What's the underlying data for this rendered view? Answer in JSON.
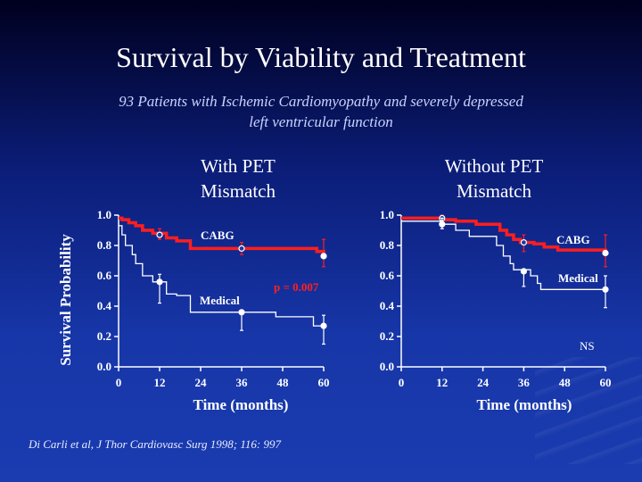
{
  "title": "Survival by Viability and Treatment",
  "subtitle_line1": "93 Patients with Ischemic Cardiomyopathy and severely depressed",
  "subtitle_line2": "left ventricular function",
  "ylabel": "Survival Probability",
  "citation": "Di Carli et al, J Thor Cardiovasc Surg 1998; 116: 997",
  "colors": {
    "cabg": "#ff1e1e",
    "medical": "#ffffff",
    "axis": "#ffffff"
  },
  "chart_data": [
    {
      "type": "line",
      "title_line1": "With PET",
      "title_line2": "Mismatch",
      "xlabel": "Time (months)",
      "ylabel": "Survival Probability",
      "xlim": [
        0,
        60
      ],
      "ylim": [
        0,
        1
      ],
      "x_ticks": [
        "0",
        "12",
        "24",
        "36",
        "48",
        "60"
      ],
      "y_ticks": [
        "0.0",
        "0.2",
        "0.4",
        "0.6",
        "0.8",
        "1.0"
      ],
      "annotation": "p = 0.007",
      "series": [
        {
          "name": "CABG",
          "color": "#ff1e1e",
          "step": [
            [
              0,
              0.98
            ],
            [
              1,
              0.97
            ],
            [
              3,
              0.95
            ],
            [
              5,
              0.93
            ],
            [
              7,
              0.9
            ],
            [
              10,
              0.88
            ],
            [
              14,
              0.85
            ],
            [
              17,
              0.83
            ],
            [
              21,
              0.78
            ],
            [
              58,
              0.76
            ],
            [
              60,
              0.73
            ]
          ],
          "markers": [
            [
              12,
              0.87
            ],
            [
              36,
              0.78
            ],
            [
              60,
              0.73
            ]
          ],
          "errors": [
            [
              12,
              0.84,
              0.91
            ],
            [
              36,
              0.74,
              0.82
            ],
            [
              60,
              0.66,
              0.84
            ]
          ]
        },
        {
          "name": "Medical",
          "color": "#ffffff",
          "step": [
            [
              0,
              0.93
            ],
            [
              1,
              0.87
            ],
            [
              2,
              0.8
            ],
            [
              4,
              0.74
            ],
            [
              5,
              0.68
            ],
            [
              7,
              0.6
            ],
            [
              10,
              0.56
            ],
            [
              14,
              0.48
            ],
            [
              17,
              0.47
            ],
            [
              21,
              0.36
            ],
            [
              46,
              0.33
            ],
            [
              57,
              0.27
            ]
          ],
          "markers": [
            [
              12,
              0.56
            ],
            [
              36,
              0.36
            ],
            [
              60,
              0.27
            ]
          ],
          "errors": [
            [
              12,
              0.42,
              0.61
            ],
            [
              36,
              0.24,
              0.37
            ],
            [
              60,
              0.15,
              0.34
            ]
          ]
        }
      ]
    },
    {
      "type": "line",
      "title_line1": "Without PET",
      "title_line2": "Mismatch",
      "xlabel": "Time (months)",
      "ylabel": "Survival Probability",
      "xlim": [
        0,
        60
      ],
      "ylim": [
        0,
        1
      ],
      "x_ticks": [
        "0",
        "12",
        "24",
        "36",
        "48",
        "60"
      ],
      "y_ticks": [
        "0.0",
        "0.2",
        "0.4",
        "0.6",
        "0.8",
        "1.0"
      ],
      "annotation": "NS",
      "series": [
        {
          "name": "CABG",
          "color": "#ff1e1e",
          "step": [
            [
              0,
              0.98
            ],
            [
              12,
              0.97
            ],
            [
              16,
              0.96
            ],
            [
              22,
              0.94
            ],
            [
              29,
              0.9
            ],
            [
              31,
              0.87
            ],
            [
              33,
              0.84
            ],
            [
              35,
              0.82
            ],
            [
              39,
              0.81
            ],
            [
              42,
              0.79
            ],
            [
              46,
              0.77
            ],
            [
              60,
              0.76
            ]
          ],
          "markers": [
            [
              12,
              0.98
            ],
            [
              36,
              0.82
            ],
            [
              60,
              0.75
            ]
          ],
          "errors": [
            [
              12,
              0.94,
              1.0
            ],
            [
              36,
              0.76,
              0.87
            ],
            [
              60,
              0.66,
              0.87
            ]
          ]
        },
        {
          "name": "Medical",
          "color": "#ffffff",
          "step": [
            [
              0,
              0.96
            ],
            [
              12,
              0.94
            ],
            [
              16,
              0.9
            ],
            [
              20,
              0.86
            ],
            [
              28,
              0.8
            ],
            [
              30,
              0.73
            ],
            [
              32,
              0.68
            ],
            [
              33,
              0.64
            ],
            [
              38,
              0.6
            ],
            [
              40,
              0.55
            ],
            [
              41,
              0.51
            ],
            [
              60,
              0.5
            ]
          ],
          "markers": [
            [
              12,
              0.94
            ],
            [
              36,
              0.63
            ],
            [
              60,
              0.51
            ]
          ],
          "errors": [
            [
              12,
              0.91,
              0.98
            ],
            [
              36,
              0.53,
              0.64
            ],
            [
              60,
              0.39,
              0.6
            ]
          ]
        }
      ]
    }
  ]
}
